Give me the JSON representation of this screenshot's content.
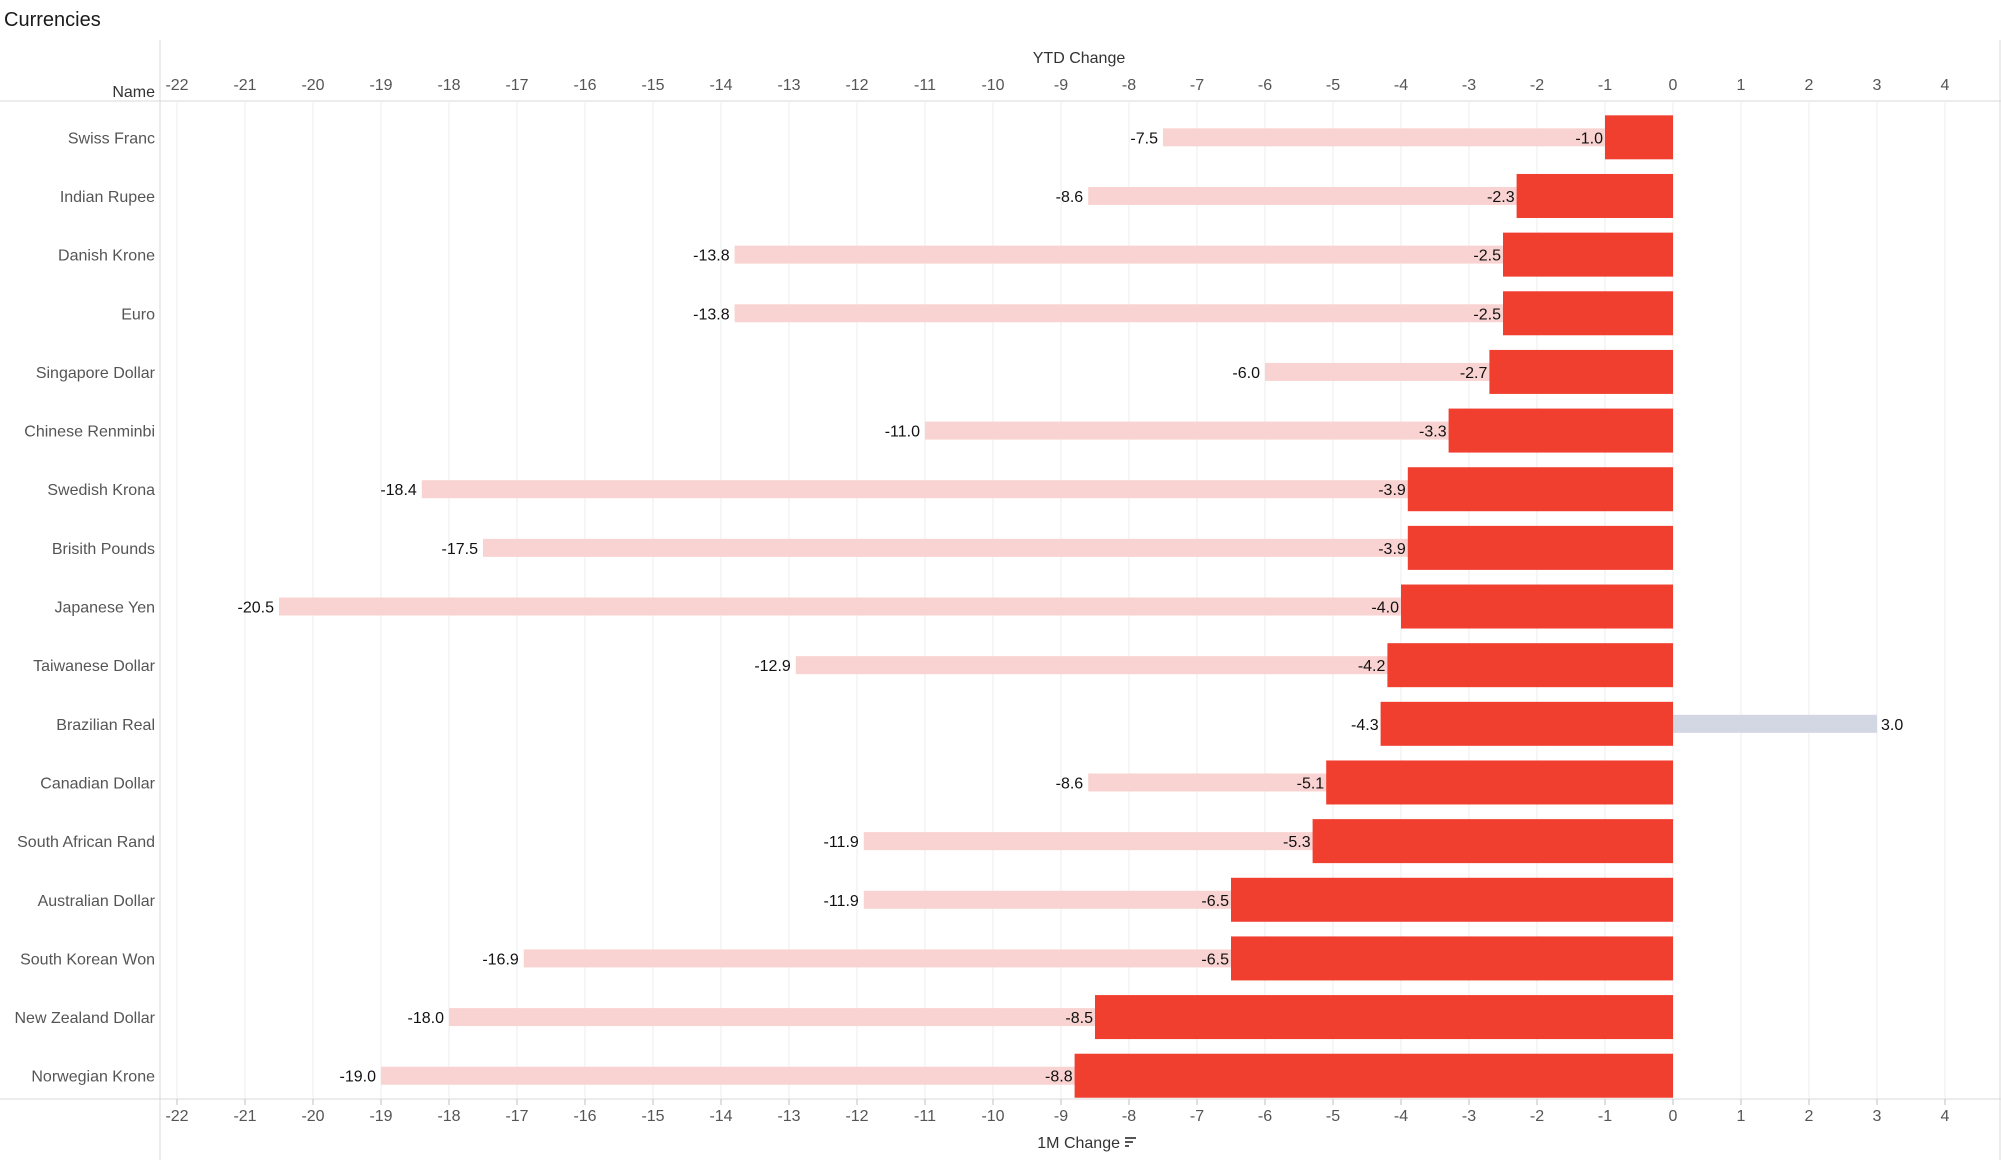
{
  "page_title": "Currencies",
  "chart_data": {
    "type": "bar",
    "title": "Currencies",
    "row_header": "Name",
    "top_axis_label": "YTD Change",
    "bottom_axis_label": "1M Change",
    "sort_icon": "sort-descending-icon",
    "xlim": [
      -22.5,
      4.5
    ],
    "ticks": [
      -22,
      -21,
      -20,
      -19,
      -18,
      -17,
      -16,
      -15,
      -14,
      -13,
      -12,
      -11,
      -10,
      -9,
      -8,
      -7,
      -6,
      -5,
      -4,
      -3,
      -2,
      -1,
      0,
      1,
      2,
      3,
      4
    ],
    "tick_labels": [
      "-22",
      "-21",
      "-20",
      "-19",
      "-18",
      "-17",
      "-16",
      "-15",
      "-14",
      "-13",
      "-12",
      "-11",
      "-10",
      "-9",
      "-8",
      "-7",
      "-6",
      "-5",
      "-4",
      "-3",
      "-2",
      "-1",
      "0",
      "1",
      "2",
      "3",
      "4"
    ],
    "grid": true,
    "categories": [
      "Swiss Franc",
      "Indian Rupee",
      "Danish Krone",
      "Euro",
      "Singapore Dollar",
      "Chinese Renminbi",
      "Swedish Krona",
      "Brisith Pounds",
      "Japanese Yen",
      "Taiwanese Dollar",
      "Brazilian Real",
      "Canadian Dollar",
      "South African Rand",
      "Australian Dollar",
      "South Korean Won",
      "New Zealand Dollar",
      "Norwegian Krone"
    ],
    "series": [
      {
        "name": "YTD Change",
        "values": [
          -7.5,
          -8.6,
          -13.8,
          -13.8,
          -6.0,
          -11.0,
          -18.4,
          -17.5,
          -20.5,
          -12.9,
          3.0,
          -8.6,
          -11.9,
          -11.9,
          -16.9,
          -18.0,
          -19.0
        ],
        "labels": [
          "-7.5",
          "-8.6",
          "-13.8",
          "-13.8",
          "-6.0",
          "-11.0",
          "-18.4",
          "-17.5",
          "-20.5",
          "-12.9",
          "3.0",
          "-8.6",
          "-11.9",
          "-11.9",
          "-16.9",
          "-18.0",
          "-19.0"
        ]
      },
      {
        "name": "1M Change",
        "values": [
          -1.0,
          -2.3,
          -2.5,
          -2.5,
          -2.7,
          -3.3,
          -3.9,
          -3.9,
          -4.0,
          -4.2,
          -4.3,
          -5.1,
          -5.3,
          -6.5,
          -6.5,
          -8.5,
          -8.8
        ],
        "labels": [
          "-1.0",
          "-2.3",
          "-2.5",
          "-2.5",
          "-2.7",
          "-3.3",
          "-3.9",
          "-3.9",
          "-4.0",
          "-4.2",
          "-4.3",
          "-5.1",
          "-5.3",
          "-6.5",
          "-6.5",
          "-8.5",
          "-8.8"
        ]
      }
    ],
    "colors": {
      "one_month_bar": "#f03e2f",
      "ytd_negative_bar": "#f9d3d1",
      "ytd_positive_bar": "#d3d6e3",
      "grid": "#ececec",
      "axis_line": "#d9d9d9"
    }
  }
}
